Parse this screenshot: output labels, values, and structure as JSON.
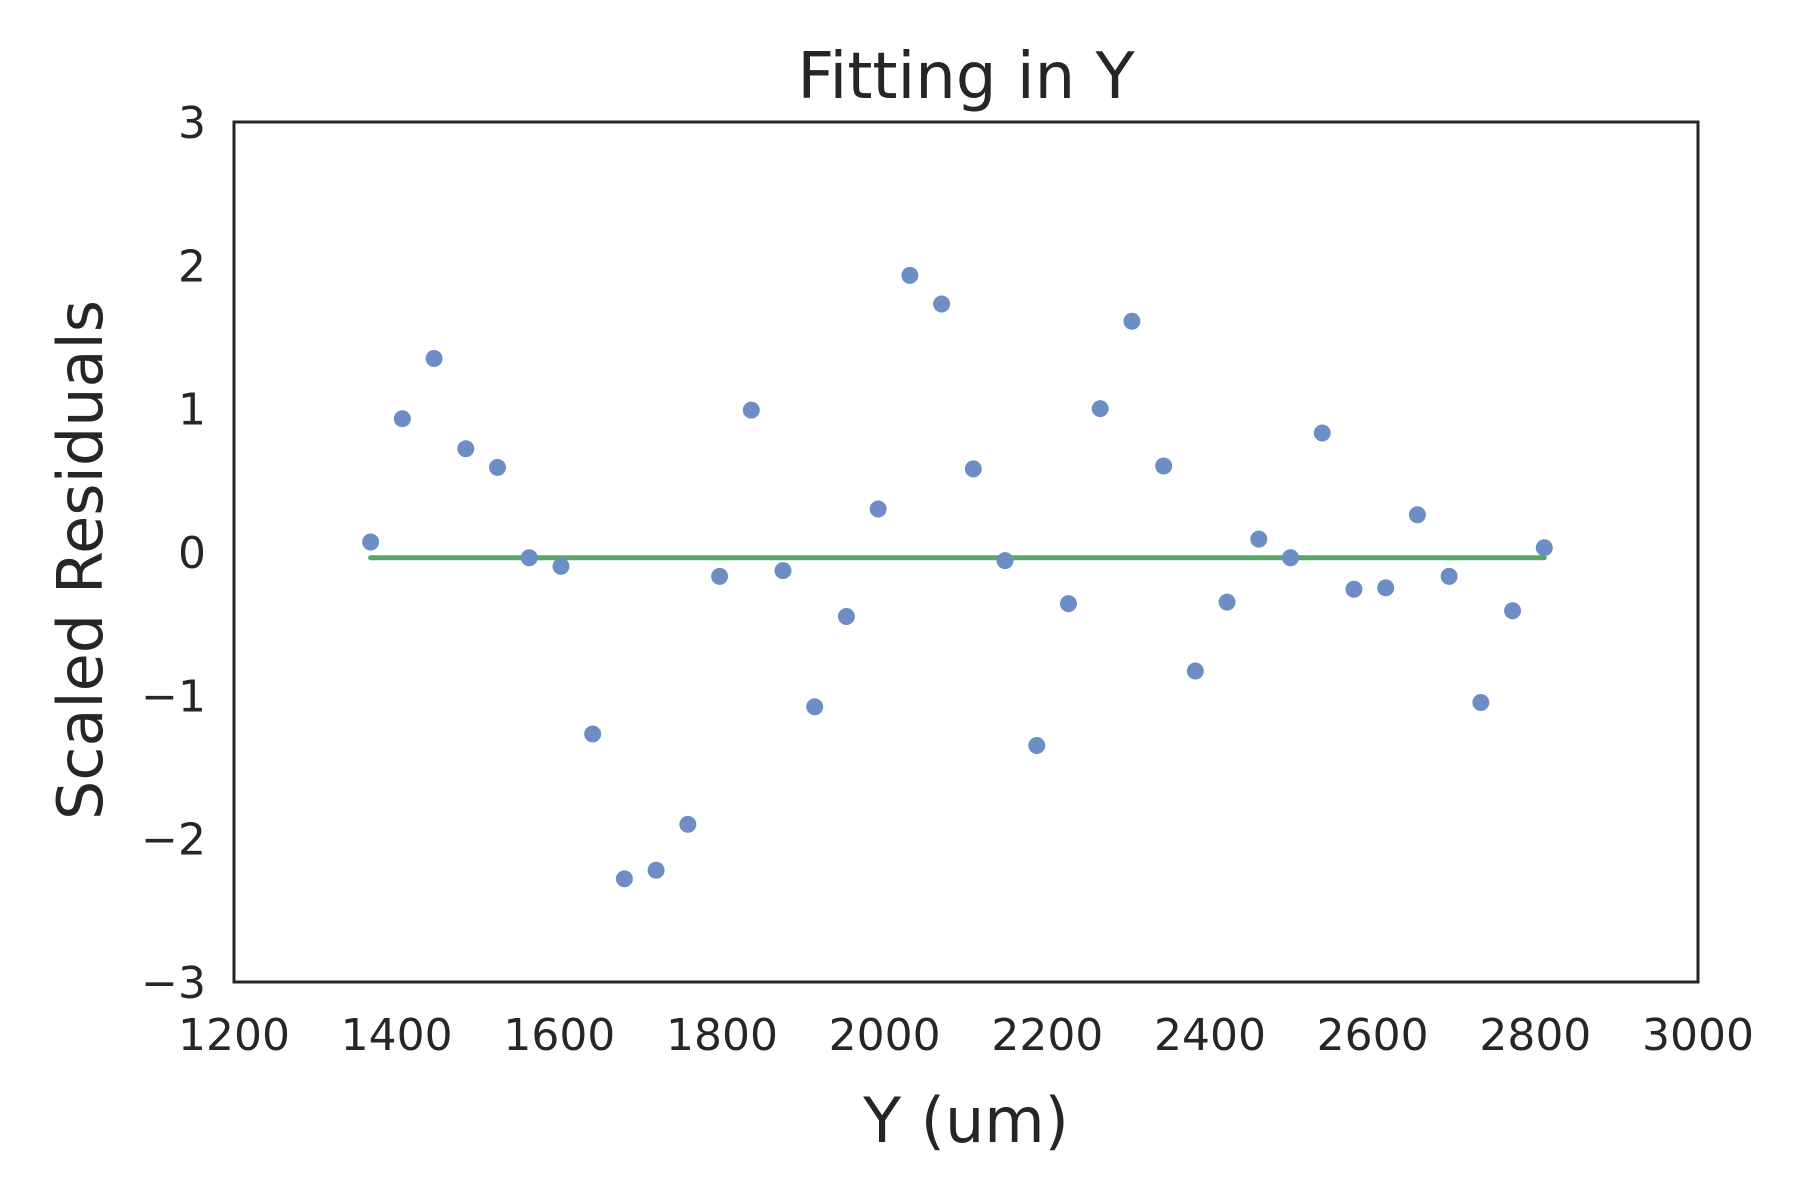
{
  "chart_data": {
    "type": "scatter",
    "title": "Fitting in Y",
    "xlabel": "Y (um)",
    "ylabel": "Scaled Residuals",
    "xlim": [
      1200,
      3000
    ],
    "ylim": [
      -3,
      3
    ],
    "x_ticks": [
      1200,
      1400,
      1600,
      1800,
      2000,
      2200,
      2400,
      2600,
      2800,
      3000
    ],
    "y_ticks": [
      -3,
      -2,
      -1,
      0,
      1,
      2,
      3
    ],
    "x_tick_labels": [
      "1200",
      "1400",
      "1600",
      "1800",
      "2000",
      "2200",
      "2400",
      "2600",
      "2800",
      "3000"
    ],
    "y_tick_labels": [
      "−3",
      "−2",
      "−1",
      "0",
      "1",
      "2",
      "3"
    ],
    "grid": false,
    "legend": null,
    "colors": {
      "points": "#6d8ec4",
      "fit_line": "#55a868",
      "axes": "#262626"
    },
    "series": [
      {
        "kind": "scatter",
        "x": [
          1368,
          1407,
          1446,
          1485,
          1524,
          1563,
          1602,
          1641,
          1680,
          1719,
          1758,
          1797,
          1836,
          1875,
          1914,
          1953,
          1992,
          2031,
          2070,
          2109,
          2148,
          2187,
          2226,
          2265,
          2304,
          2343,
          2382,
          2421,
          2460,
          2499,
          2538,
          2577,
          2616,
          2655,
          2694,
          2733,
          2772,
          2811
        ],
        "y": [
          0.07,
          0.93,
          1.35,
          0.72,
          0.59,
          -0.04,
          -0.1,
          -1.27,
          -2.28,
          -2.22,
          -1.9,
          -0.17,
          0.99,
          -0.13,
          -1.08,
          -0.45,
          0.3,
          1.93,
          1.73,
          0.58,
          -0.06,
          -1.35,
          -0.36,
          1.0,
          1.61,
          0.6,
          -0.83,
          -0.35,
          0.09,
          -0.04,
          0.83,
          -0.26,
          -0.25,
          0.26,
          -0.17,
          -1.05,
          -0.41,
          0.03
        ]
      },
      {
        "kind": "line",
        "x": [
          1368,
          2811
        ],
        "y": [
          -0.04,
          -0.04
        ]
      }
    ]
  }
}
